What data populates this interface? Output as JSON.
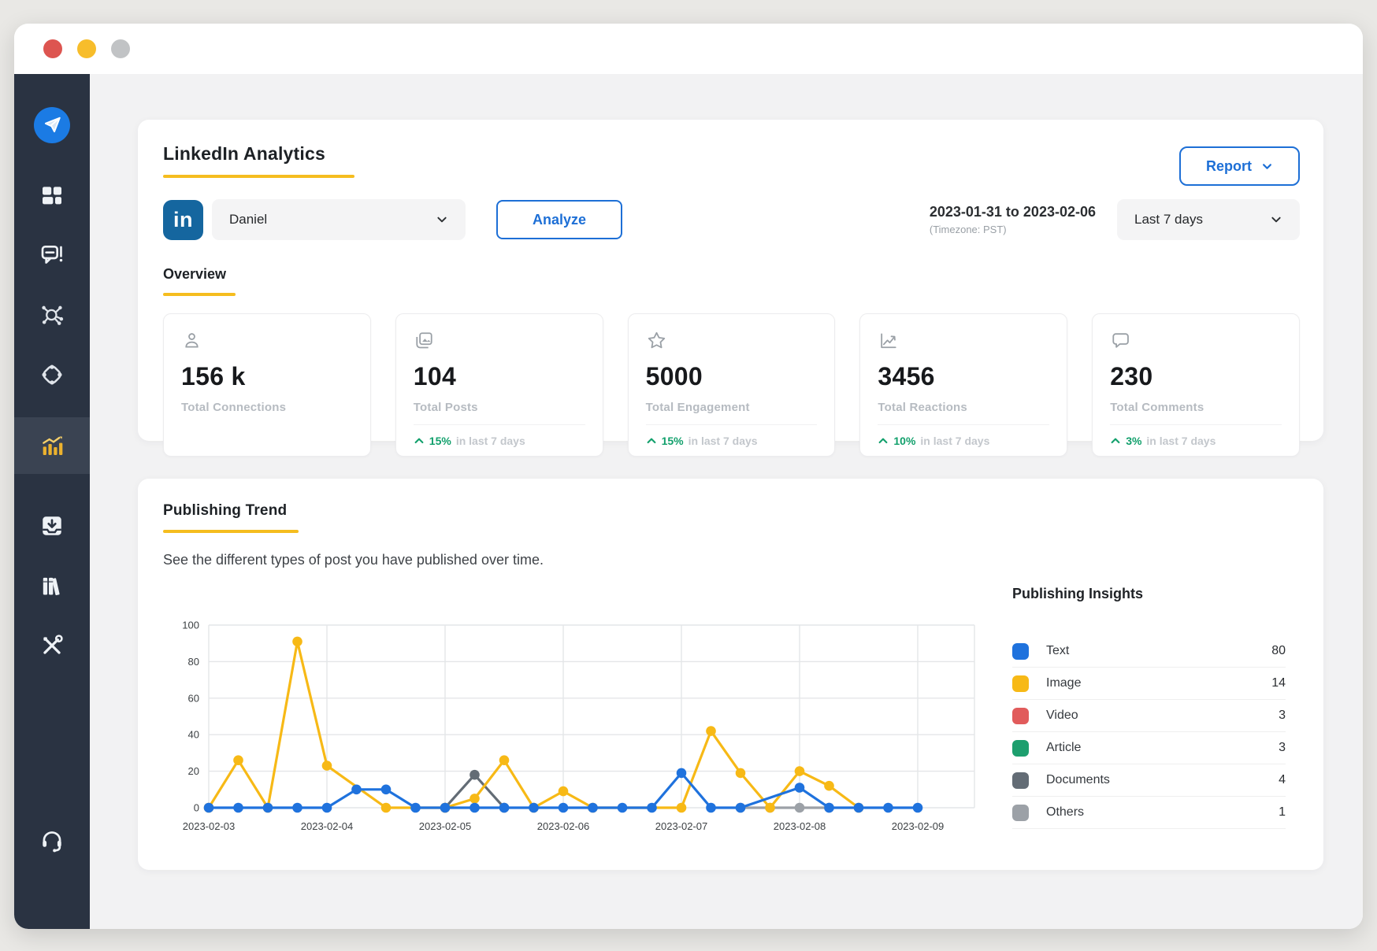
{
  "window": {
    "traffic_lights": [
      "#dd5550",
      "#f7bd2b",
      "#c1c3c5"
    ]
  },
  "sidebar": {
    "bg_color": "#2a3342",
    "active_bg_color": "#3a4352",
    "items": [
      {
        "id": "logo",
        "icon": "paper-plane-icon",
        "active": false
      },
      {
        "id": "dashboard",
        "icon": "grid-icon",
        "active": false
      },
      {
        "id": "posts",
        "icon": "chat-alert-icon",
        "active": false
      },
      {
        "id": "connect",
        "icon": "network-icon",
        "active": false
      },
      {
        "id": "discover",
        "icon": "compass-dots-icon",
        "active": false
      },
      {
        "id": "analytics",
        "icon": "bar-chart-icon",
        "active": true
      },
      {
        "id": "inbox",
        "icon": "inbox-tray-icon",
        "active": false
      },
      {
        "id": "library",
        "icon": "books-icon",
        "active": false
      },
      {
        "id": "tools",
        "icon": "tools-icon",
        "active": false
      },
      {
        "id": "support",
        "icon": "headset-icon",
        "active": false,
        "bottom": true
      }
    ]
  },
  "header": {
    "title": "LinkedIn Analytics",
    "report_button_label": "Report",
    "profile_network": "in",
    "profile_name": "Daniel",
    "analyze_button_label": "Analyze",
    "date_range": "2023-01-31 to 2023-02-06",
    "timezone_note": "(Timezone: PST)",
    "period_selected": "Last 7 days"
  },
  "overview": {
    "label": "Overview",
    "accent_color": "#f5bd1f",
    "cards": [
      {
        "icon": "person-icon",
        "value": "156 k",
        "label": "Total Connections",
        "change_pct": null,
        "change_suffix": null
      },
      {
        "icon": "photos-icon",
        "value": "104",
        "label": "Total Posts",
        "change_pct": "15%",
        "change_suffix": "in last 7 days"
      },
      {
        "icon": "star-icon",
        "value": "5000",
        "label": "Total Engagement",
        "change_pct": "15%",
        "change_suffix": "in last 7 days"
      },
      {
        "icon": "trend-icon",
        "value": "3456",
        "label": "Total Reactions",
        "change_pct": "10%",
        "change_suffix": "in last 7 days"
      },
      {
        "icon": "comment-icon",
        "value": "230",
        "label": "Total Comments",
        "change_pct": "3%",
        "change_suffix": "in last 7 days"
      }
    ],
    "change_up_color": "#12a06c"
  },
  "publishing_trend": {
    "title": "Publishing Trend",
    "subtitle": "See the different types of post you have published over time."
  },
  "publishing_insights": {
    "title": "Publishing Insights",
    "rows": [
      {
        "label": "Text",
        "value": "80",
        "color": "#1f72dd"
      },
      {
        "label": "Image",
        "value": "14",
        "color": "#f7b916"
      },
      {
        "label": "Video",
        "value": "3",
        "color": "#e15b5b"
      },
      {
        "label": "Article",
        "value": "3",
        "color": "#1d9f6e"
      },
      {
        "label": "Documents",
        "value": "4",
        "color": "#636c75"
      },
      {
        "label": "Others",
        "value": "1",
        "color": "#9ca1a7"
      }
    ]
  },
  "chart_data": {
    "type": "line",
    "title": "Publishing Trend",
    "x_labels": [
      "2023-02-03",
      "2023-02-04",
      "2023-02-05",
      "2023-02-06",
      "2023-02-07",
      "2023-02-08",
      "2023-02-09"
    ],
    "y_ticks": [
      0,
      20,
      40,
      60,
      80,
      100
    ],
    "ylim": [
      0,
      100
    ],
    "grid": true,
    "legend_position": "right-panel",
    "series": [
      {
        "name": "Others",
        "color": "#9ca1a7",
        "points": [
          [
            4.5,
            0
          ],
          [
            4.75,
            0
          ],
          [
            5,
            0
          ],
          [
            5.25,
            0
          ]
        ]
      },
      {
        "name": "Documents",
        "color": "#636c75",
        "points": [
          [
            2,
            0
          ],
          [
            2.25,
            18
          ],
          [
            2.5,
            0
          ]
        ]
      },
      {
        "name": "Image",
        "color": "#f7b916",
        "points": [
          [
            0,
            0
          ],
          [
            0.25,
            26
          ],
          [
            0.5,
            0
          ],
          [
            0.75,
            91
          ],
          [
            1,
            23
          ],
          [
            1.5,
            0
          ],
          [
            2,
            0
          ],
          [
            2.25,
            5
          ],
          [
            2.5,
            26
          ],
          [
            2.75,
            0
          ],
          [
            3,
            9
          ],
          [
            3.25,
            0
          ],
          [
            4,
            0
          ],
          [
            4.25,
            42
          ],
          [
            4.5,
            19
          ],
          [
            4.75,
            0
          ],
          [
            5,
            20
          ],
          [
            5.25,
            12
          ],
          [
            5.5,
            0
          ]
        ]
      },
      {
        "name": "Text",
        "color": "#1f72dd",
        "points": [
          [
            0,
            0
          ],
          [
            0.25,
            0
          ],
          [
            0.5,
            0
          ],
          [
            0.75,
            0
          ],
          [
            1,
            0
          ],
          [
            1.25,
            10
          ],
          [
            1.5,
            10
          ],
          [
            1.75,
            0
          ],
          [
            2,
            0
          ],
          [
            2.25,
            0
          ],
          [
            2.5,
            0
          ],
          [
            2.75,
            0
          ],
          [
            3,
            0
          ],
          [
            3.25,
            0
          ],
          [
            3.5,
            0
          ],
          [
            3.75,
            0
          ],
          [
            4,
            19
          ],
          [
            4.25,
            0
          ],
          [
            4.5,
            0
          ],
          [
            5,
            11
          ],
          [
            5.25,
            0
          ],
          [
            5.5,
            0
          ],
          [
            5.75,
            0
          ],
          [
            6,
            0
          ]
        ]
      }
    ]
  }
}
